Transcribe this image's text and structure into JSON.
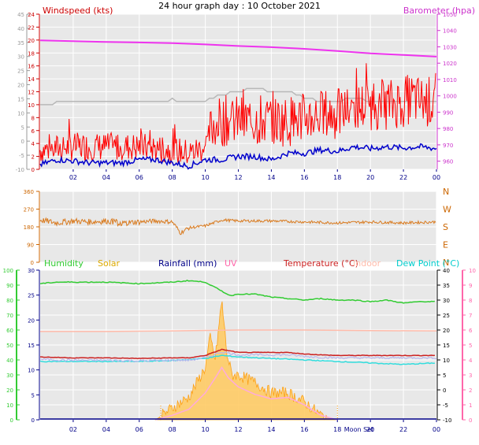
{
  "title": "24 hour graph day : 10 October 2021",
  "colors": {
    "background": "#ffffff",
    "plot_bg": "#e8e8e8",
    "grid": "#ffffff",
    "wind_avg": "#0000cc",
    "wind_gust": "#ff0000",
    "barometer": "#ee33ee",
    "direction": "#d97a1e",
    "humidity": "#33cc33",
    "solar": "#ddaa00",
    "rainfall": "#000088",
    "uv": "#ff88cc",
    "temperature": "#cc2222",
    "indoor": "#ffbbaa",
    "dewpoint": "#33dddd",
    "axis_gray": "#999999",
    "wind_label": "#cc0000",
    "baro_label": "#cc33cc",
    "dir_label": "#cc6600",
    "cyan_label": "#00cccc",
    "pink_label": "#ff66aa",
    "rain_label": "#000088",
    "solar_fill": "#ffcc66",
    "solar_edge": "#ff9900",
    "uv_series": "#ffaadd",
    "grid_major": "#d0d0d0",
    "x_tick_label": "#000088"
  },
  "chart_data": [
    {
      "type": "line",
      "title": "24 hour graph day : 10 October 2021",
      "xlabel": "",
      "x_tick_labels": [
        "02",
        "04",
        "06",
        "08",
        "10",
        "12",
        "14",
        "16",
        "18",
        "20",
        "22",
        "00"
      ],
      "left_axis": {
        "label": "Windspeed (kts)",
        "ylim": [
          0,
          24
        ],
        "ticks": [
          "0",
          "2",
          "4",
          "6",
          "8",
          "10",
          "12",
          "14",
          "16",
          "18",
          "20",
          "22",
          "24"
        ]
      },
      "outer_left_axis": {
        "ylim": [
          -10,
          45
        ],
        "ticks": [
          "-10",
          "-5",
          "0",
          "5",
          "10",
          "15",
          "20",
          "25",
          "30",
          "35",
          "40",
          "45"
        ]
      },
      "right_axis": {
        "label": "Barometer (hpa)",
        "ylim": [
          955,
          1050
        ],
        "ticks": [
          "960",
          "970",
          "980",
          "990",
          "1000",
          "1010",
          "1020",
          "1030",
          "1040",
          "1050"
        ]
      },
      "series": [
        {
          "key": "wind_gust",
          "x_hours": [
            0,
            2,
            4,
            6,
            8,
            9,
            9.5,
            10,
            10.5,
            11,
            12,
            13,
            14,
            15,
            16,
            17,
            18,
            19,
            20,
            21,
            22,
            22.5,
            23,
            24
          ],
          "values": [
            3,
            3.5,
            3.5,
            3.5,
            3,
            2.5,
            3,
            3.5,
            7,
            7.5,
            7.5,
            7.5,
            7.5,
            7.5,
            8,
            8.5,
            8.5,
            9.5,
            10,
            10,
            10.5,
            11,
            10.5,
            10.5
          ]
        },
        {
          "key": "wind_avg",
          "x_hours": [
            0,
            1,
            2,
            3,
            4,
            5,
            6,
            7,
            8,
            9,
            10,
            11,
            12,
            13,
            14,
            15,
            16,
            17,
            18,
            19,
            20,
            21,
            22,
            23,
            24
          ],
          "values": [
            0.7,
            1.5,
            1.3,
            1,
            1,
            1,
            1.5,
            1.5,
            1,
            0.5,
            1.5,
            1.5,
            2,
            2,
            1.5,
            2.5,
            2.5,
            3,
            2.8,
            3.5,
            3.2,
            3.5,
            3.3,
            3.5,
            3.2
          ]
        },
        {
          "key": "barometer",
          "x_hours": [
            0,
            2,
            4,
            6,
            8,
            10,
            12,
            14,
            16,
            18,
            20,
            22,
            24
          ],
          "values": [
            1034,
            1033.5,
            1033,
            1032.7,
            1032.3,
            1031.5,
            1030.5,
            1029.8,
            1028.8,
            1027.5,
            1026,
            1025,
            1024
          ]
        },
        {
          "key": "gray_trace",
          "x_hours": [
            0,
            2,
            4,
            6,
            7,
            8,
            9,
            10,
            10.5,
            11,
            12,
            13,
            14,
            15,
            16,
            17,
            18,
            19,
            20,
            22,
            24
          ],
          "values": [
            10,
            10.5,
            10.5,
            10.5,
            10.5,
            10.8,
            10.5,
            10.5,
            11,
            11.5,
            12,
            12.5,
            12,
            12,
            11,
            10.5,
            10.5,
            11,
            10.5,
            10.5,
            10.5
          ]
        }
      ]
    },
    {
      "type": "scatter",
      "title": "",
      "left_axis": {
        "ylim": [
          0,
          360
        ],
        "ticks": [
          "0",
          "90",
          "180",
          "270",
          "360"
        ]
      },
      "right_axis": {
        "ticks": [
          "N",
          "E",
          "S",
          "W",
          "N"
        ]
      },
      "series": [
        {
          "key": "direction",
          "x_hours": [
            0,
            1,
            2,
            3,
            4,
            5,
            6,
            7,
            8,
            8.5,
            9,
            10,
            11,
            12,
            14,
            16,
            18,
            20,
            22,
            24
          ],
          "values": [
            215,
            200,
            210,
            205,
            210,
            200,
            205,
            210,
            205,
            150,
            175,
            185,
            215,
            210,
            210,
            205,
            200,
            205,
            200,
            205
          ]
        }
      ]
    },
    {
      "type": "line",
      "title": "",
      "legend": [
        "Humidity",
        "Solar",
        "Rainfall (mm)",
        "UV",
        "Temperature (°C)",
        "Indoor",
        "Dew Point (°C)"
      ],
      "legend_keys": [
        "humidity",
        "solar",
        "rainfall",
        "uv",
        "temperature",
        "indoor",
        "dewpoint"
      ],
      "left_outer_axis": {
        "ylim": [
          0,
          100
        ],
        "ticks": [
          "0",
          "10",
          "20",
          "30",
          "40",
          "50",
          "60",
          "70",
          "80",
          "90",
          "100"
        ]
      },
      "left_inner_axis": {
        "ylim": [
          0,
          30
        ],
        "ticks": [
          "0",
          "5",
          "10",
          "15",
          "20",
          "25",
          "30"
        ]
      },
      "right_inner_axis": {
        "ylim": [
          -10,
          40
        ],
        "ticks": [
          "-10",
          "-5",
          "0",
          "5",
          "10",
          "15",
          "20",
          "25",
          "30",
          "35",
          "40"
        ]
      },
      "right_outer_axis": {
        "ylim": [
          0,
          10
        ],
        "ticks": [
          "0",
          "1",
          "2",
          "3",
          "4",
          "5",
          "6",
          "7",
          "8",
          "9",
          "10"
        ]
      },
      "x_tick_labels": [
        "02",
        "04",
        "06",
        "08",
        "10",
        "12",
        "14",
        "16",
        "18",
        "20",
        "22",
        "00"
      ],
      "annotation": "Moon Set",
      "series": [
        {
          "key": "humidity",
          "x_hours": [
            0,
            1,
            2,
            4,
            6,
            8,
            9,
            10,
            11,
            11.5,
            12,
            13,
            14,
            15,
            16,
            17,
            18,
            19,
            20,
            21,
            22,
            23,
            24
          ],
          "values": [
            91,
            92,
            92,
            92,
            91,
            92,
            93,
            92,
            86,
            83,
            84,
            84,
            82,
            81,
            80,
            81,
            80,
            80,
            79,
            80,
            78,
            79,
            79
          ]
        },
        {
          "key": "indoor",
          "x_hours": [
            0,
            4,
            8,
            12,
            16,
            20,
            24
          ],
          "values": [
            19.5,
            19.5,
            19.7,
            20.0,
            20.0,
            19.8,
            19.7
          ]
        },
        {
          "key": "temperature",
          "x_hours": [
            0,
            2,
            4,
            6,
            8,
            9,
            10,
            10.5,
            11,
            11.5,
            12,
            13,
            14,
            15,
            16,
            17,
            18,
            19,
            20,
            22,
            24
          ],
          "values": [
            11,
            10.7,
            10.7,
            10.5,
            10.7,
            10.7,
            11.5,
            12.5,
            13.5,
            13,
            12.5,
            12.5,
            12.5,
            12.5,
            12,
            11.7,
            11.5,
            11.5,
            11.5,
            11.5,
            11.5
          ]
        },
        {
          "key": "dewpoint",
          "x_hours": [
            0,
            2,
            4,
            6,
            8,
            10,
            11,
            12,
            14,
            16,
            18,
            20,
            22,
            24
          ],
          "values": [
            9.5,
            9.5,
            9.5,
            9.5,
            9.8,
            10.5,
            11.5,
            11,
            10.5,
            10,
            9.5,
            9,
            8.5,
            9
          ]
        },
        {
          "key": "solar",
          "x_hours": [
            7,
            8,
            9,
            9.5,
            10,
            10.3,
            10.6,
            11,
            11.3,
            11.6,
            12,
            13,
            14,
            15,
            16,
            17,
            18
          ],
          "values": [
            0,
            0.8,
            1.5,
            2.5,
            3.5,
            5.5,
            4,
            8,
            4.5,
            3,
            3,
            2.5,
            1.8,
            1.8,
            1.2,
            0.3,
            0
          ]
        },
        {
          "key": "uv",
          "x_hours": [
            7,
            8,
            9,
            10,
            10.6,
            11,
            11.4,
            12,
            13,
            14,
            15,
            16,
            17,
            18
          ],
          "values": [
            0,
            0.3,
            0.7,
            1.8,
            2.8,
            3.5,
            2.8,
            2.2,
            1.7,
            1.4,
            1.5,
            1.0,
            0.3,
            0
          ]
        }
      ]
    }
  ]
}
